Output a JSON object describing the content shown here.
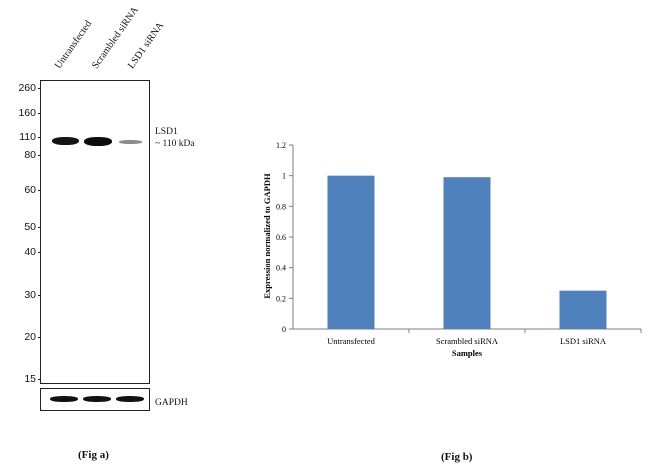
{
  "fig_a": {
    "lanes": [
      "Untransfected",
      "Scrambled siRNA",
      "LSD1 siRNA"
    ],
    "markers": [
      "260",
      "160",
      "110",
      "80",
      "60",
      "50",
      "40",
      "30",
      "20",
      "15"
    ],
    "target_label": "LSD1",
    "target_size": "~ 110 kDa",
    "loading_control": "GAPDH",
    "caption": "(Fig a)"
  },
  "fig_b": {
    "caption": "(Fig b)"
  },
  "chart_data": {
    "type": "bar",
    "categories": [
      "Untransfected",
      "Scrambled siRNA",
      "LSD1 siRNA"
    ],
    "values": [
      1.0,
      0.99,
      0.25
    ],
    "xlabel": "Samples",
    "ylabel": "Expression normalized to GAPDH",
    "ylim": [
      0,
      1.2
    ],
    "yticks": [
      "0",
      "0.2",
      "0.4",
      "0.6",
      "0.8",
      "1",
      "1.2"
    ],
    "bar_color": "#4f81bd",
    "grid": false,
    "legend": "none"
  }
}
